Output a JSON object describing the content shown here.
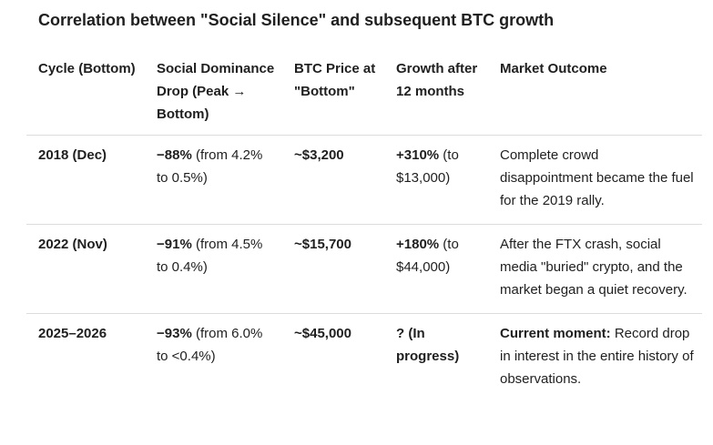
{
  "title": "Correlation between \"Social Silence\" and subsequent BTC growth",
  "headers": {
    "cycle": "Cycle (Bottom)",
    "dominance": "Social Dominance Drop (Peak → Bottom)",
    "price": "BTC Price at \"Bottom\"",
    "growth": "Growth after 12 months",
    "outcome": "Market Outcome"
  },
  "rows": [
    {
      "cycle": "2018 (Dec)",
      "drop_bold": "−88%",
      "drop_rest": " (from 4.2% to 0.5%)",
      "price": "~$3,200",
      "growth_bold": "+310%",
      "growth_rest": " (to $13,000)",
      "outcome_bold": "",
      "outcome_rest": "Complete crowd disappointment became the fuel for the 2019 rally."
    },
    {
      "cycle": "2022 (Nov)",
      "drop_bold": "−91%",
      "drop_rest": " (from 4.5% to 0.4%)",
      "price": "~$15,700",
      "growth_bold": "+180%",
      "growth_rest": " (to $44,000)",
      "outcome_bold": "",
      "outcome_rest": "After the FTX crash, social media \"buried\" crypto, and the market began a quiet recovery."
    },
    {
      "cycle": "2025–2026",
      "drop_bold": "−93%",
      "drop_rest": " (from 6.0% to <0.4%)",
      "price": "~$45,000",
      "growth_bold": "? (In progress)",
      "growth_rest": "",
      "outcome_bold": "Current moment:",
      "outcome_rest": " Record drop in interest in the entire history of observations."
    }
  ]
}
